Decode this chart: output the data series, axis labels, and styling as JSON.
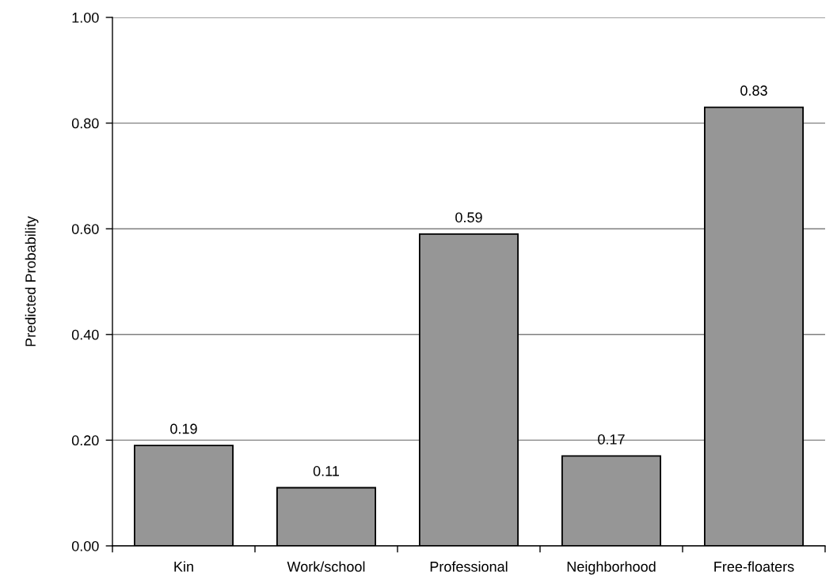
{
  "chart_data": {
    "type": "bar",
    "ylabel": "Predicted Probability",
    "categories": [
      "Kin",
      "Work/school",
      "Professional",
      "Neighborhood",
      "Free-floaters"
    ],
    "values": [
      0.19,
      0.11,
      0.59,
      0.17,
      0.83
    ],
    "color": "#969696",
    "ylim": [
      0,
      1
    ],
    "yticks": [
      {
        "value": 0,
        "label": "0.00"
      },
      {
        "value": 0.2,
        "label": "0.20"
      },
      {
        "value": 0.4,
        "label": "0.40"
      },
      {
        "value": 0.6,
        "label": "0.60"
      },
      {
        "value": 0.8,
        "label": "0.80"
      },
      {
        "value": 1,
        "label": "1.00"
      }
    ],
    "grid": "y",
    "data_labels": true
  }
}
